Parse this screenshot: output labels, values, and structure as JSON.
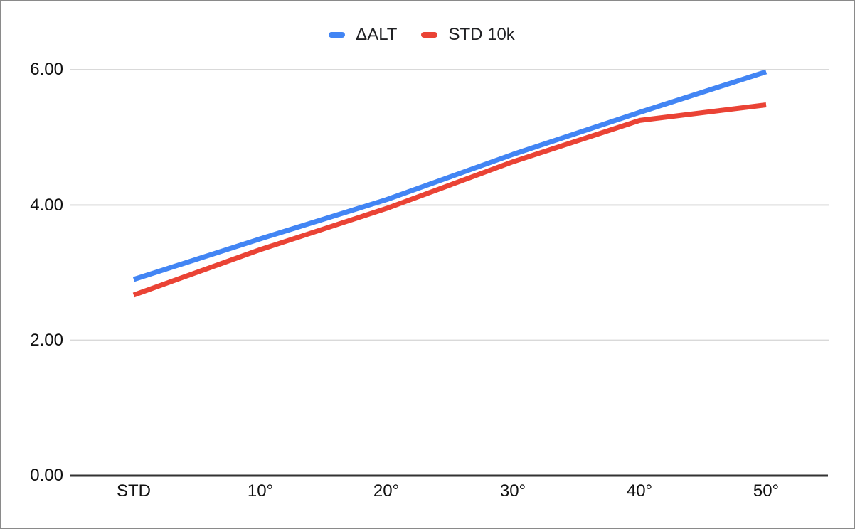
{
  "chart_data": {
    "type": "line",
    "categories": [
      "STD",
      "10°",
      "20°",
      "30°",
      "40°",
      "50°"
    ],
    "series": [
      {
        "name": "ΔALT",
        "color": "#4285f4",
        "values": [
          2.9,
          3.5,
          4.08,
          4.75,
          5.37,
          5.97
        ]
      },
      {
        "name": "STD 10k",
        "color": "#ea4335",
        "values": [
          2.67,
          3.34,
          3.95,
          4.64,
          5.25,
          5.48
        ]
      }
    ],
    "y_ticks": [
      "6.00",
      "4.00",
      "2.00",
      "0.00"
    ],
    "y_tick_values": [
      6,
      4,
      2,
      0
    ],
    "ylim": [
      0,
      6
    ],
    "title": "",
    "xlabel": "",
    "ylabel": "",
    "legend_position": "top",
    "grid": true
  },
  "colors": {
    "grid": "#d9d9d9",
    "axis": "#333333",
    "text": "#111111",
    "legend_text": "#202124",
    "border": "#8a8a8a",
    "background": "#ffffff"
  }
}
